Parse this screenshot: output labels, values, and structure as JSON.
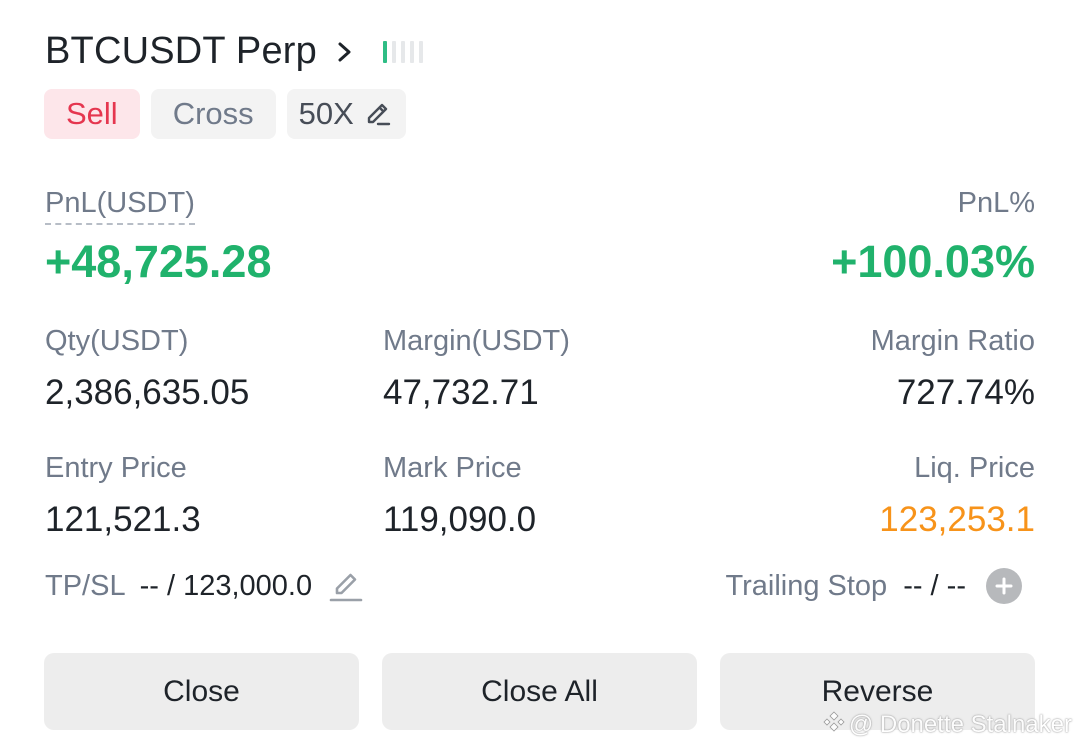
{
  "header": {
    "symbol": "BTCUSDT Perp",
    "bars_active": 1,
    "bars_total": 5
  },
  "tags": {
    "side": "Sell",
    "margin_mode": "Cross",
    "leverage": "50X"
  },
  "pnl": {
    "label": "PnL(USDT)",
    "value": "+48,725.28",
    "pct_label": "PnL%",
    "pct_value": "+100.03%"
  },
  "row1": {
    "qty_label": "Qty(USDT)",
    "qty_value": "2,386,635.05",
    "margin_label": "Margin(USDT)",
    "margin_value": "47,732.71",
    "ratio_label": "Margin Ratio",
    "ratio_value": "727.74%"
  },
  "row2": {
    "entry_label": "Entry Price",
    "entry_value": "121,521.3",
    "mark_label": "Mark Price",
    "mark_value": "119,090.0",
    "liq_label": "Liq. Price",
    "liq_value": "123,253.1"
  },
  "tpsl": {
    "label": "TP/SL",
    "value": "-- / 123,000.0"
  },
  "trailing": {
    "label": "Trailing Stop",
    "value": "-- / --"
  },
  "buttons": {
    "close": "Close",
    "close_all": "Close All",
    "reverse": "Reverse"
  },
  "watermark": "@ Donette Stalnaker",
  "colors": {
    "profit": "#20b26c",
    "sell": "#e5364f",
    "liq": "#f7931a"
  }
}
